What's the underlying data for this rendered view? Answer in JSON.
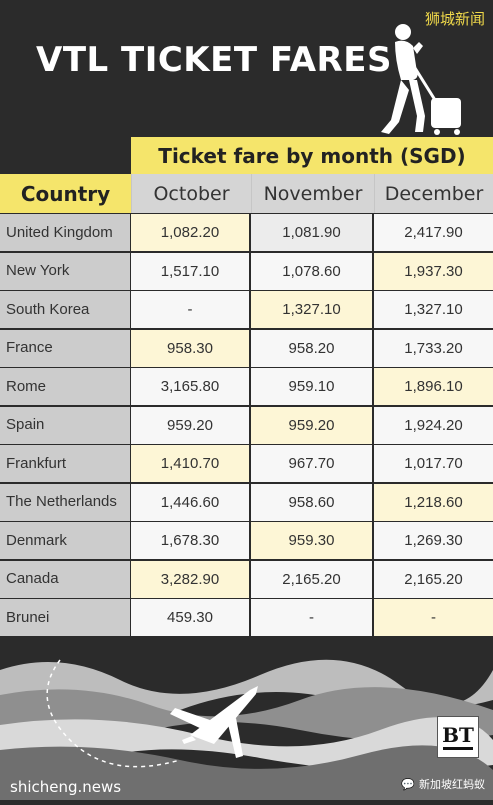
{
  "watermark_top": "狮城新闻",
  "title": "VTL TICKET FARES",
  "table": {
    "banner": "Ticket fare by month (SGD)",
    "country_header": "Country",
    "months": [
      "October",
      "November",
      "December"
    ],
    "rows": [
      {
        "country": "United Kingdom",
        "oct": "1,082.20",
        "nov": "1,081.90",
        "dec": "2,417.90"
      },
      {
        "country": "New York",
        "oct": "1,517.10",
        "nov": "1,078.60",
        "dec": "1,937.30"
      },
      {
        "country": "South Korea",
        "oct": "-",
        "nov": "1,327.10",
        "dec": "1,327.10"
      },
      {
        "country": "France",
        "oct": "958.30",
        "nov": "958.20",
        "dec": "1,733.20"
      },
      {
        "country": "Rome",
        "oct": "3,165.80",
        "nov": "959.10",
        "dec": "1,896.10"
      },
      {
        "country": "Spain",
        "oct": "959.20",
        "nov": "959.20",
        "dec": "1,924.20"
      },
      {
        "country": "Frankfurt",
        "oct": "1,410.70",
        "nov": "967.70",
        "dec": "1,017.70"
      },
      {
        "country": "The Netherlands",
        "oct": "1,446.60",
        "nov": "958.60",
        "dec": "1,218.60"
      },
      {
        "country": "Denmark",
        "oct": "1,678.30",
        "nov": "959.30",
        "dec": "1,269.30"
      },
      {
        "country": "Canada",
        "oct": "3,282.90",
        "nov": "2,165.20",
        "dec": "2,165.20"
      },
      {
        "country": "Brunei",
        "oct": "459.30",
        "nov": "-",
        "dec": "-"
      }
    ]
  },
  "logo": {
    "text": "BT"
  },
  "watermark_bottom_left": "shicheng.news",
  "watermark_bottom_right": "新加坡红蚂蚁",
  "colors": {
    "background": "#2b2b2b",
    "accent": "#f5e56b",
    "highlight": "#fdf6d6"
  }
}
